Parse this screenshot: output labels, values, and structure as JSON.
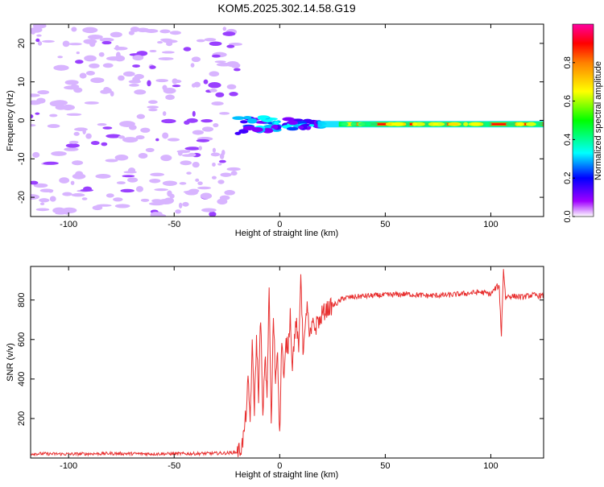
{
  "title": "KOM5.2025.302.14.58.G19",
  "chart_data": [
    {
      "type": "heatmap",
      "xlabel": "Height of straight line (km)",
      "ylabel": "Frequency (Hz)",
      "xlim": [
        -118,
        125
      ],
      "ylim": [
        -25,
        25
      ],
      "xticks": [
        -100,
        -50,
        0,
        50,
        100
      ],
      "yticks": [
        -20,
        -10,
        0,
        10,
        20
      ],
      "colorbar": {
        "label": "Normalized spectral amplitude",
        "range": [
          0,
          1
        ],
        "ticks": [
          0.0,
          0.2,
          0.4,
          0.6,
          0.8
        ],
        "colors": [
          "#ffffff",
          "#a000ff",
          "#0000ff",
          "#00ffff",
          "#00ff00",
          "#ffff00",
          "#ff8000",
          "#ff0000",
          "#ff00a0"
        ]
      },
      "signal_track": {
        "frequency_hz": -1,
        "onset_km": -20,
        "strong_from_km": 28
      }
    },
    {
      "type": "line",
      "xlabel": "Height of straight line (km)",
      "ylabel": "SNR (v/v)",
      "xlim": [
        -118,
        125
      ],
      "ylim": [
        0,
        970
      ],
      "xticks": [
        -100,
        -50,
        0,
        50,
        100
      ],
      "yticks": [
        200,
        400,
        600,
        800
      ],
      "line_color": "#e83030",
      "series": [
        {
          "x": [
            -118,
            -100,
            -80,
            -60,
            -40,
            -25,
            -20,
            -18,
            -17,
            -16,
            -15,
            -14,
            -13,
            -12,
            -11,
            -10,
            -9,
            -8,
            -7,
            -6,
            -5,
            -4,
            -3,
            -2,
            -1,
            0,
            1,
            2,
            3,
            4,
            5,
            6,
            7,
            8,
            9,
            10,
            11,
            12,
            13,
            14,
            15,
            16,
            17,
            18,
            19,
            20,
            22,
            25,
            28,
            30,
            35,
            40,
            50,
            60,
            70,
            80,
            90,
            95,
            100,
            103,
            104,
            105,
            106,
            107,
            108,
            110,
            115,
            120,
            125
          ],
          "y": [
            22,
            20,
            23,
            21,
            22,
            25,
            30,
            55,
            120,
            220,
            380,
            200,
            560,
            250,
            600,
            320,
            730,
            180,
            520,
            330,
            860,
            150,
            720,
            400,
            550,
            100,
            620,
            380,
            580,
            560,
            740,
            460,
            620,
            680,
            520,
            960,
            560,
            620,
            800,
            600,
            640,
            690,
            650,
            710,
            680,
            730,
            750,
            770,
            790,
            810,
            815,
            820,
            825,
            830,
            822,
            825,
            835,
            840,
            830,
            870,
            860,
            620,
            960,
            810,
            820,
            820,
            815,
            825,
            820
          ]
        }
      ]
    }
  ]
}
